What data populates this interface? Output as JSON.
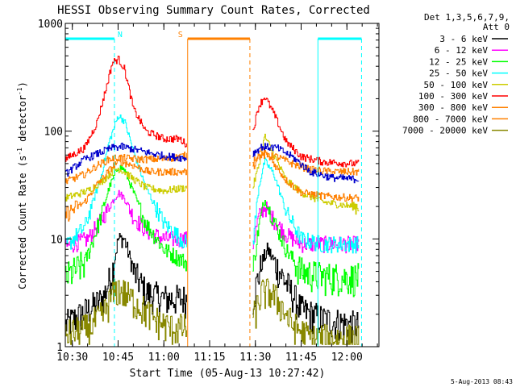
{
  "chart_data": {
    "type": "line",
    "title": "HESSI Observing Summary Count Rates, Corrected",
    "xlabel": "Start Time (05-Aug-13 10:27:42)",
    "ylabel_main": "Corrected Count Rate (s",
    "ylabel_sup1": "-1",
    "ylabel_mid": " detector",
    "ylabel_sup2": "-1",
    "ylabel_end": ")",
    "yscale": "log",
    "ylim": [
      1,
      1000
    ],
    "xlim_minutes": [
      627.7,
      730.5
    ],
    "x_ticks": [
      {
        "label": "10:30",
        "t": 630
      },
      {
        "label": "10:45",
        "t": 645
      },
      {
        "label": "11:00",
        "t": 660
      },
      {
        "label": "11:15",
        "t": 675
      },
      {
        "label": "11:30",
        "t": 690
      },
      {
        "label": "11:45",
        "t": 705
      },
      {
        "label": "12:00",
        "t": 720
      }
    ],
    "y_ticks": [
      {
        "label": "1",
        "v": 1
      },
      {
        "label": "10",
        "v": 10
      },
      {
        "label": "100",
        "v": 100
      },
      {
        "label": "1000",
        "v": 1000
      }
    ],
    "gaps": [
      [
        667.6,
        689.1
      ]
    ],
    "legend_header": [
      "Det 1,3,5,6,7,9,",
      "Att 0"
    ],
    "legend_position": "right",
    "series": [
      {
        "name": "3 - 6 keV",
        "color": "#000000",
        "points": [
          [
            627.7,
            1.6
          ],
          [
            635,
            2.2
          ],
          [
            640,
            2.8
          ],
          [
            643,
            5
          ],
          [
            645,
            10
          ],
          [
            647,
            10
          ],
          [
            650,
            5
          ],
          [
            654,
            3.2
          ],
          [
            660,
            2.8
          ],
          [
            667.6,
            2.8
          ],
          [
            689.1,
            2.8
          ],
          [
            692,
            6
          ],
          [
            694,
            8
          ],
          [
            697,
            5.5
          ],
          [
            701,
            3.5
          ],
          [
            705,
            2.2
          ],
          [
            712,
            1.8
          ],
          [
            722,
            1.6
          ],
          [
            724,
            1.6
          ]
        ]
      },
      {
        "name": "6 - 12 keV",
        "color": "#ff00ff",
        "points": [
          [
            627.7,
            8.5
          ],
          [
            635,
            10
          ],
          [
            640,
            16
          ],
          [
            643,
            22
          ],
          [
            645,
            27
          ],
          [
            647,
            24
          ],
          [
            650,
            16
          ],
          [
            654,
            12
          ],
          [
            660,
            10
          ],
          [
            667.6,
            10
          ],
          [
            689.1,
            9
          ],
          [
            691,
            16
          ],
          [
            693,
            20
          ],
          [
            696,
            15
          ],
          [
            700,
            11
          ],
          [
            705,
            9
          ],
          [
            712,
            9
          ],
          [
            722,
            9
          ],
          [
            724,
            9
          ]
        ]
      },
      {
        "name": "12 - 25 keV",
        "color": "#00ff00",
        "points": [
          [
            627.7,
            4.4
          ],
          [
            634,
            6
          ],
          [
            639,
            15
          ],
          [
            642,
            30
          ],
          [
            645,
            47
          ],
          [
            647,
            44
          ],
          [
            650,
            27
          ],
          [
            654,
            14
          ],
          [
            660,
            8
          ],
          [
            667.6,
            6
          ],
          [
            689.1,
            5
          ],
          [
            691,
            13
          ],
          [
            693,
            23
          ],
          [
            696,
            15
          ],
          [
            700,
            8
          ],
          [
            705,
            5
          ],
          [
            712,
            4.5
          ],
          [
            722,
            4.4
          ],
          [
            724,
            4.4
          ]
        ]
      },
      {
        "name": "25 - 50 keV",
        "color": "#00ffff",
        "points": [
          [
            627.7,
            8.5
          ],
          [
            634,
            13
          ],
          [
            639,
            35
          ],
          [
            642,
            80
          ],
          [
            645,
            140
          ],
          [
            647,
            125
          ],
          [
            650,
            65
          ],
          [
            654,
            30
          ],
          [
            660,
            14
          ],
          [
            667.6,
            9
          ],
          [
            689.1,
            9
          ],
          [
            691,
            30
          ],
          [
            693,
            53
          ],
          [
            696,
            40
          ],
          [
            700,
            18
          ],
          [
            705,
            10
          ],
          [
            712,
            9
          ],
          [
            722,
            9
          ],
          [
            724,
            9
          ]
        ]
      },
      {
        "name": "50 - 100 keV",
        "color": "#cccc00",
        "points": [
          [
            627.7,
            24
          ],
          [
            635,
            28
          ],
          [
            640,
            35
          ],
          [
            643,
            42
          ],
          [
            645,
            45
          ],
          [
            647,
            42
          ],
          [
            650,
            36
          ],
          [
            654,
            30
          ],
          [
            660,
            28
          ],
          [
            667.6,
            30
          ],
          [
            689.1,
            30
          ],
          [
            691,
            48
          ],
          [
            693,
            90
          ],
          [
            696,
            60
          ],
          [
            700,
            35
          ],
          [
            705,
            27
          ],
          [
            712,
            22
          ],
          [
            722,
            20
          ],
          [
            724,
            20
          ]
        ]
      },
      {
        "name": "100 - 300 keV",
        "color": "#ff0000",
        "points": [
          [
            627.7,
            55
          ],
          [
            634,
            70
          ],
          [
            638,
            120
          ],
          [
            641,
            250
          ],
          [
            643,
            430
          ],
          [
            645,
            470
          ],
          [
            647,
            380
          ],
          [
            650,
            160
          ],
          [
            654,
            100
          ],
          [
            660,
            85
          ],
          [
            665,
            85
          ],
          [
            667.6,
            75
          ],
          [
            689.1,
            100
          ],
          [
            691,
            170
          ],
          [
            693,
            210
          ],
          [
            696,
            145
          ],
          [
            700,
            80
          ],
          [
            705,
            58
          ],
          [
            712,
            52
          ],
          [
            722,
            50
          ],
          [
            724,
            50
          ]
        ]
      },
      {
        "name": "300 - 800 keV",
        "color": "#ff8000",
        "points": [
          [
            627.7,
            17
          ],
          [
            634,
            22
          ],
          [
            638,
            32
          ],
          [
            641,
            40
          ],
          [
            644,
            50
          ],
          [
            646,
            52
          ],
          [
            650,
            48
          ],
          [
            655,
            42
          ],
          [
            660,
            42
          ],
          [
            667.6,
            42
          ],
          [
            689.1,
            45
          ],
          [
            692,
            70
          ],
          [
            695,
            55
          ],
          [
            700,
            35
          ],
          [
            705,
            27
          ],
          [
            712,
            25
          ],
          [
            722,
            24
          ],
          [
            724,
            24
          ]
        ]
      },
      {
        "name": "800 - 7000 keV",
        "color": "#ff8000",
        "points": [
          [
            627.7,
            34
          ],
          [
            634,
            40
          ],
          [
            638,
            48
          ],
          [
            642,
            55
          ],
          [
            645,
            57
          ],
          [
            648,
            56
          ],
          [
            652,
            55
          ],
          [
            660,
            55
          ],
          [
            667.6,
            60
          ],
          [
            689.1,
            55
          ],
          [
            692,
            60
          ],
          [
            697,
            58
          ],
          [
            702,
            50
          ],
          [
            708,
            44
          ],
          [
            715,
            42
          ],
          [
            722,
            42
          ],
          [
            724,
            42
          ]
        ]
      },
      {
        "name": "7000 - 20000 keV",
        "color": "#888800",
        "points": [
          [
            627.7,
            1.3
          ],
          [
            635,
            1.5
          ],
          [
            640,
            2.0
          ],
          [
            643,
            3
          ],
          [
            645,
            3.5
          ],
          [
            648,
            3
          ],
          [
            652,
            2.4
          ],
          [
            657,
            1.8
          ],
          [
            662,
            1.5
          ],
          [
            667.6,
            1.5
          ],
          [
            689.1,
            1.8
          ],
          [
            692,
            3.2
          ],
          [
            695,
            3.2
          ],
          [
            698,
            2.5
          ],
          [
            702,
            1.6
          ],
          [
            708,
            1.2
          ],
          [
            715,
            1.2
          ],
          [
            724,
            1.2
          ]
        ]
      },
      {
        "name": "ref 100 - 300 upper",
        "color": "#0000cc",
        "hidden_in_legend": true,
        "points": [
          [
            627.7,
            40
          ],
          [
            634,
            55
          ],
          [
            640,
            65
          ],
          [
            643,
            70
          ],
          [
            646,
            72
          ],
          [
            650,
            68
          ],
          [
            656,
            62
          ],
          [
            662,
            58
          ],
          [
            667.6,
            56
          ],
          [
            689.1,
            62
          ],
          [
            692,
            72
          ],
          [
            697,
            70
          ],
          [
            702,
            58
          ],
          [
            708,
            42
          ],
          [
            715,
            37
          ],
          [
            722,
            36
          ],
          [
            724,
            36
          ]
        ]
      }
    ],
    "markers": [
      {
        "label": "N",
        "color": "#00ffff",
        "bar_from": 627.7,
        "bar_to": 643.8,
        "dashed_at": 643.8
      },
      {
        "label": "S",
        "color": "#ff8000",
        "bar_from": 667.8,
        "bar_to": 688.2,
        "dashed_at": 688.2
      },
      {
        "label": "",
        "color": "#00ffff",
        "bar_from": 710.5,
        "bar_to": 724.8,
        "dashed_at": 724.8
      }
    ],
    "footer_date": "5-Aug-2013 08:43"
  }
}
